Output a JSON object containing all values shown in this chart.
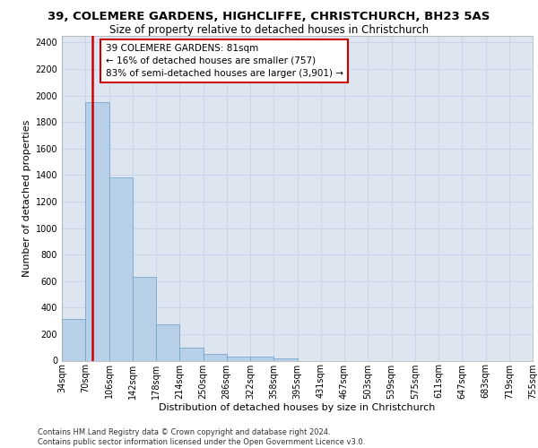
{
  "title_line1": "39, COLEMERE GARDENS, HIGHCLIFFE, CHRISTCHURCH, BH23 5AS",
  "title_line2": "Size of property relative to detached houses in Christchurch",
  "xlabel": "Distribution of detached houses by size in Christchurch",
  "ylabel": "Number of detached properties",
  "footer_line1": "Contains HM Land Registry data © Crown copyright and database right 2024.",
  "footer_line2": "Contains public sector information licensed under the Open Government Licence v3.0.",
  "bin_labels": [
    "34sqm",
    "70sqm",
    "106sqm",
    "142sqm",
    "178sqm",
    "214sqm",
    "250sqm",
    "286sqm",
    "322sqm",
    "358sqm",
    "395sqm",
    "431sqm",
    "467sqm",
    "503sqm",
    "539sqm",
    "575sqm",
    "611sqm",
    "647sqm",
    "683sqm",
    "719sqm",
    "755sqm"
  ],
  "bar_values": [
    315,
    1950,
    1380,
    630,
    275,
    100,
    48,
    32,
    28,
    20,
    0,
    0,
    0,
    0,
    0,
    0,
    0,
    0,
    0,
    0
  ],
  "bar_color": "#b8cfe8",
  "bar_edge_color": "#6a9ec8",
  "property_line_color": "#cc0000",
  "annotation_text": "39 COLEMERE GARDENS: 81sqm\n← 16% of detached houses are smaller (757)\n83% of semi-detached houses are larger (3,901) →",
  "annotation_box_color": "#ffffff",
  "annotation_box_edge_color": "#cc0000",
  "ylim": [
    0,
    2450
  ],
  "yticks": [
    0,
    200,
    400,
    600,
    800,
    1000,
    1200,
    1400,
    1600,
    1800,
    2000,
    2200,
    2400
  ],
  "grid_color": "#c8d4e8",
  "background_color": "#dce5f0",
  "title1_fontsize": 9.5,
  "title2_fontsize": 8.5,
  "axis_label_fontsize": 8,
  "tick_fontsize": 7,
  "annotation_fontsize": 7.5,
  "footer_fontsize": 6
}
